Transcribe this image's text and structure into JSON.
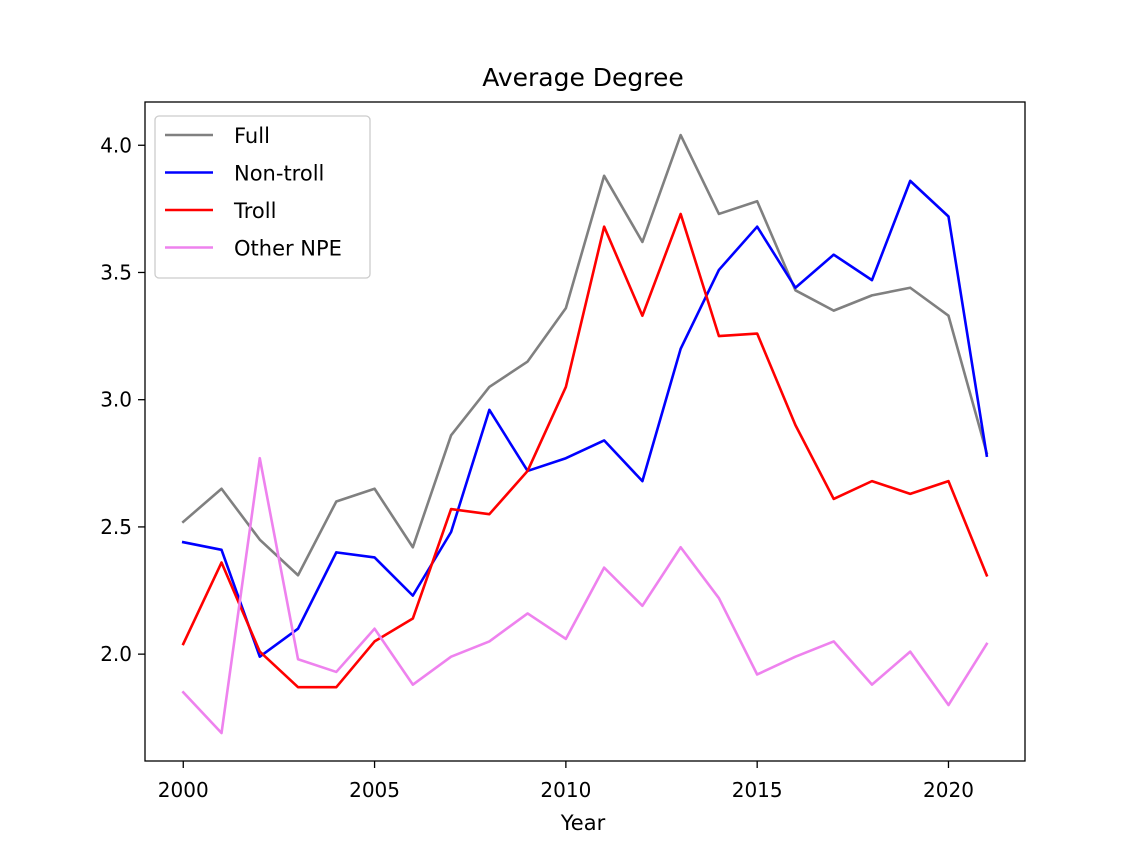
{
  "chart_data": {
    "type": "line",
    "title": "Average Degree",
    "xlabel": "Year",
    "ylabel": "",
    "xlim": [
      1999.0,
      2022.0
    ],
    "ylim": [
      1.58,
      4.17
    ],
    "xticks": [
      2000,
      2005,
      2010,
      2015,
      2020
    ],
    "yticks": [
      2.0,
      2.5,
      3.0,
      3.5,
      4.0
    ],
    "ytick_labels": [
      "2.0",
      "2.5",
      "3.0",
      "3.5",
      "4.0"
    ],
    "grid": false,
    "legend_position": "top-left",
    "x": [
      2000,
      2001,
      2002,
      2003,
      2004,
      2005,
      2006,
      2007,
      2008,
      2009,
      2010,
      2011,
      2012,
      2013,
      2014,
      2015,
      2016,
      2017,
      2018,
      2019,
      2020,
      2021
    ],
    "series": [
      {
        "name": "Full",
        "color": "#808080",
        "values": [
          2.52,
          2.65,
          2.45,
          2.31,
          2.6,
          2.65,
          2.42,
          2.86,
          3.05,
          3.15,
          3.36,
          3.88,
          3.62,
          4.04,
          3.73,
          3.78,
          3.43,
          3.35,
          3.41,
          3.44,
          3.33,
          2.79
        ]
      },
      {
        "name": "Non-troll",
        "color": "#0000ff",
        "values": [
          2.44,
          2.41,
          1.99,
          2.1,
          2.4,
          2.38,
          2.23,
          2.48,
          2.96,
          2.72,
          2.77,
          2.84,
          2.68,
          3.2,
          3.51,
          3.68,
          3.44,
          3.57,
          3.47,
          3.86,
          3.72,
          2.78
        ]
      },
      {
        "name": "Troll",
        "color": "#ff0000",
        "values": [
          2.04,
          2.36,
          2.01,
          1.87,
          1.87,
          2.05,
          2.14,
          2.57,
          2.55,
          2.72,
          3.05,
          3.68,
          3.33,
          3.73,
          3.25,
          3.26,
          2.9,
          2.61,
          2.68,
          2.63,
          2.68,
          2.31
        ]
      },
      {
        "name": "Other NPE",
        "color": "#ee82ee",
        "values": [
          1.85,
          1.69,
          2.77,
          1.98,
          1.93,
          2.1,
          1.88,
          1.99,
          2.05,
          2.16,
          2.06,
          2.34,
          2.19,
          2.42,
          2.22,
          1.92,
          1.99,
          2.05,
          1.88,
          2.01,
          1.8,
          2.04
        ]
      }
    ]
  }
}
